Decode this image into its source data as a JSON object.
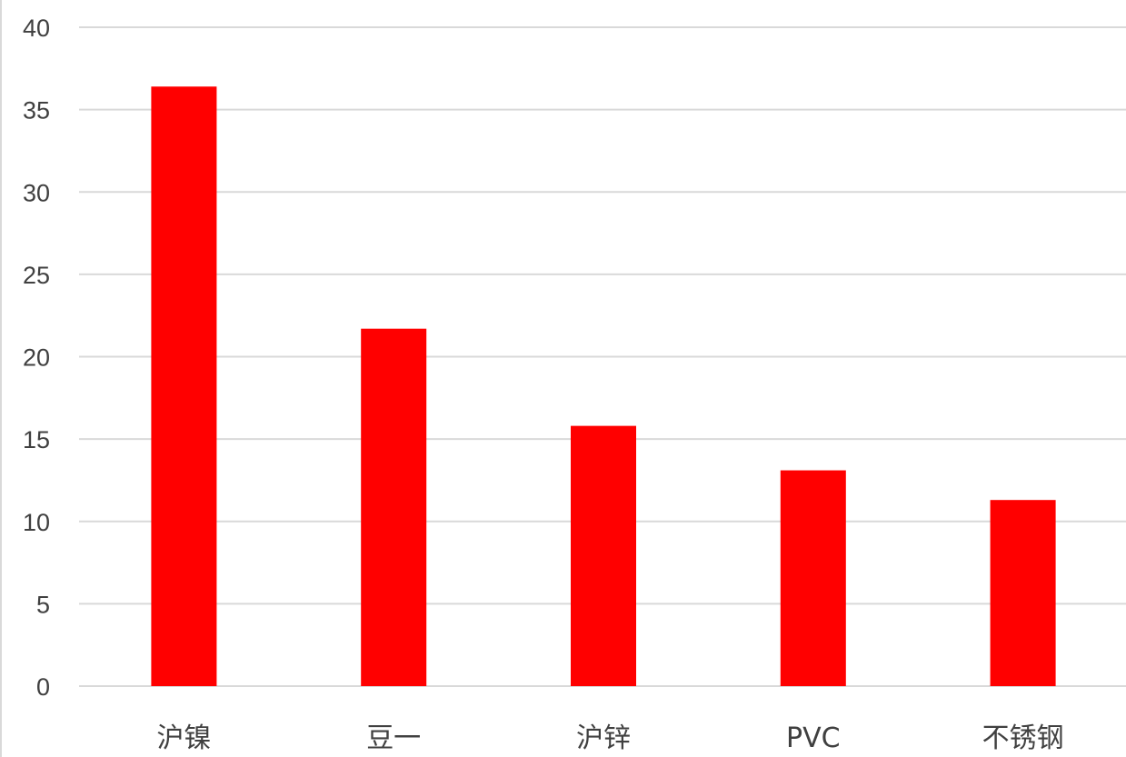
{
  "chart_data": {
    "type": "bar",
    "title": "",
    "xlabel": "",
    "ylabel": "",
    "categories": [
      "沪镍",
      "豆一",
      "沪锌",
      "PVC",
      "不锈钢"
    ],
    "values": [
      36.4,
      21.7,
      15.8,
      13.1,
      11.3
    ],
    "ylim": [
      0,
      40
    ],
    "yticks": [
      0,
      5,
      10,
      15,
      20,
      25,
      30,
      35,
      40
    ],
    "grid": true,
    "legend": "none",
    "bar_color": "#ff0000",
    "grid_color": "#d9d9d9",
    "text_color": "#404040"
  }
}
